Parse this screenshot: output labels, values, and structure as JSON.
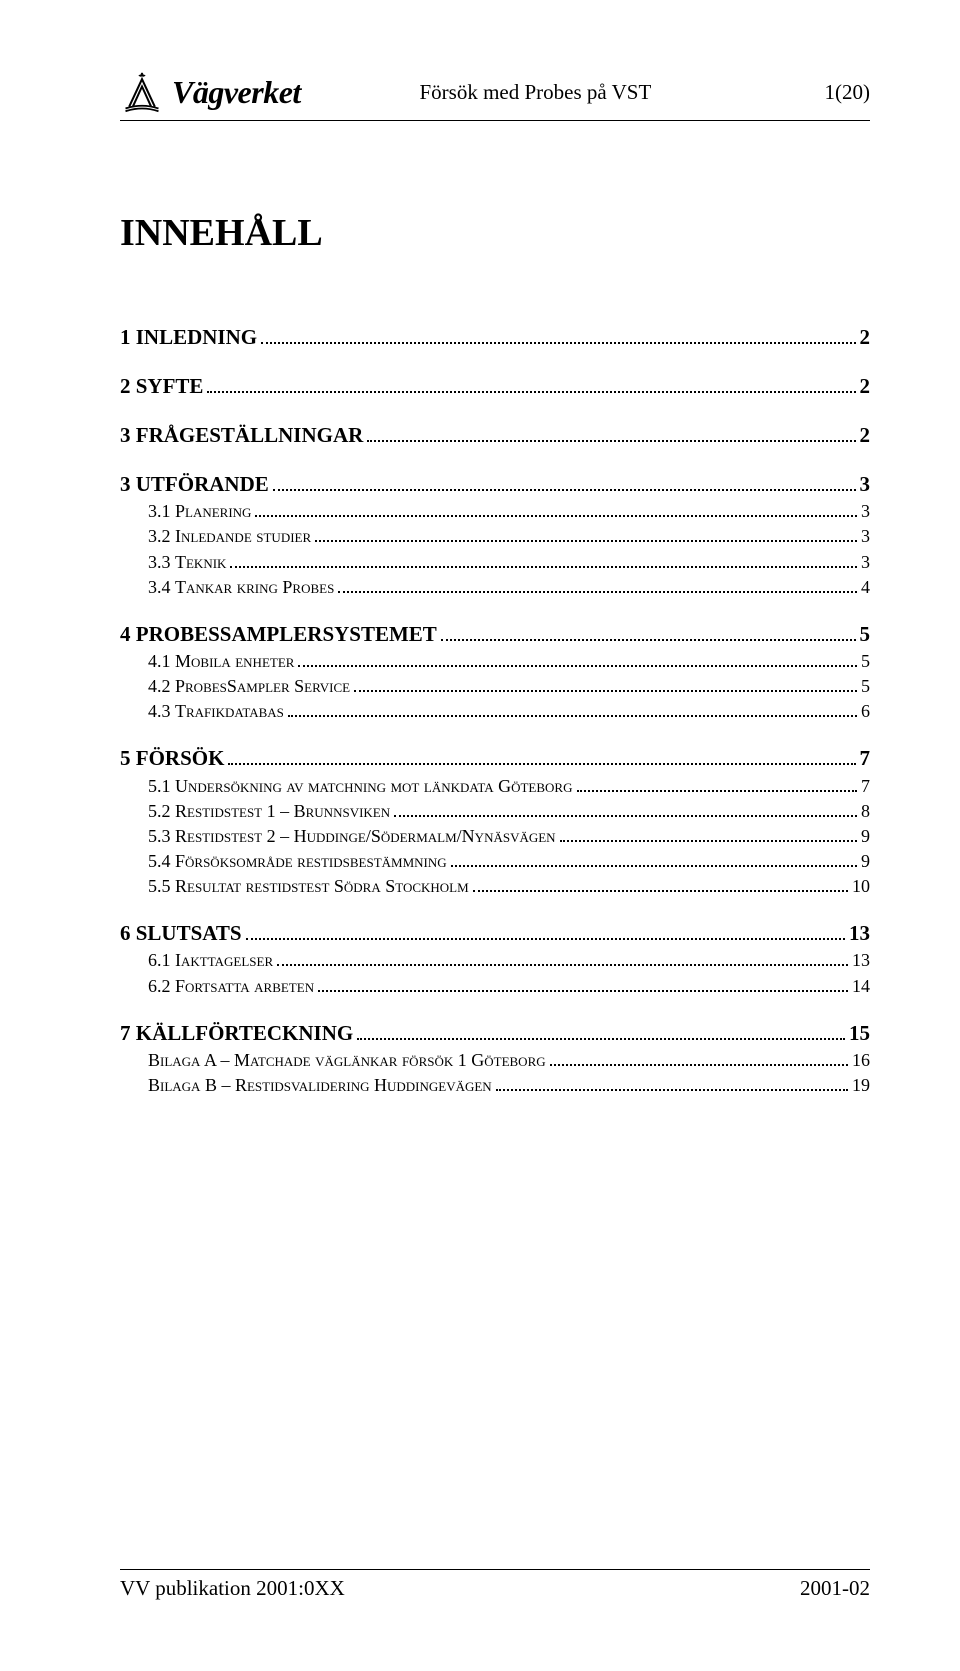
{
  "header": {
    "org": "Vägverket",
    "center": "Försök med Probes på VST",
    "right": "1(20)"
  },
  "title": "INNEHÅLL",
  "toc": [
    {
      "level": 1,
      "label": "1 INLEDNING",
      "page": "2"
    },
    {
      "level": 1,
      "label": "2 SYFTE",
      "page": "2"
    },
    {
      "level": 1,
      "label": "3 FRÅGESTÄLLNINGAR",
      "page": "2"
    },
    {
      "level": 1,
      "label": "3 UTFÖRANDE",
      "page": "3"
    },
    {
      "level": 2,
      "num": "3.1 ",
      "rest": "Planering",
      "page": "3"
    },
    {
      "level": 2,
      "num": "3.2 ",
      "rest": "Inledande studier",
      "page": "3"
    },
    {
      "level": 2,
      "num": "3.3 ",
      "rest": "Teknik",
      "page": "3"
    },
    {
      "level": 2,
      "num": "3.4 ",
      "rest": "Tankar kring Probes",
      "page": "4"
    },
    {
      "level": 1,
      "label": "4 PROBESSAMPLERSYSTEMET",
      "page": "5"
    },
    {
      "level": 2,
      "num": "4.1 ",
      "rest": "Mobila enheter",
      "page": "5"
    },
    {
      "level": 2,
      "num": "4.2 ",
      "rest": "ProbesSampler Service",
      "page": "5"
    },
    {
      "level": 2,
      "num": "4.3 ",
      "rest": "Trafikdatabas",
      "page": "6"
    },
    {
      "level": 1,
      "label": "5 FÖRSÖK",
      "page": "7"
    },
    {
      "level": 2,
      "num": "5.1 ",
      "rest": "Undersökning av matchning mot länkdata Göteborg",
      "page": "7"
    },
    {
      "level": 2,
      "num": "5.2 ",
      "rest": "Restidstest 1 – Brunnsviken",
      "page": "8"
    },
    {
      "level": 2,
      "num": "5.3 ",
      "rest": "Restidstest 2 – Huddinge/Södermalm/Nynäsvägen",
      "page": "9"
    },
    {
      "level": 2,
      "num": "5.4 ",
      "rest": "Försöksområde restidsbestämmning",
      "page": "9"
    },
    {
      "level": 2,
      "num": "5.5 ",
      "rest": "Resultat restidstest Södra Stockholm",
      "page": "10"
    },
    {
      "level": 1,
      "label": "6 SLUTSATS",
      "page": "13"
    },
    {
      "level": 2,
      "num": "6.1 ",
      "rest": "Iakttagelser",
      "page": "13"
    },
    {
      "level": 2,
      "num": "6.2 ",
      "rest": "Fortsatta arbeten",
      "page": "14"
    },
    {
      "level": 1,
      "label": "7 KÄLLFÖRTECKNING",
      "page": "15"
    },
    {
      "level": 2,
      "num": "",
      "rest": "Bilaga A – Matchade väglänkar försök 1 Göteborg",
      "page": "16"
    },
    {
      "level": 2,
      "num": "",
      "rest": "Bilaga B – Restidsvalidering Huddingevägen",
      "page": "19"
    }
  ],
  "footer": {
    "left": "VV publikation 2001:0XX",
    "right": "2001-02"
  }
}
